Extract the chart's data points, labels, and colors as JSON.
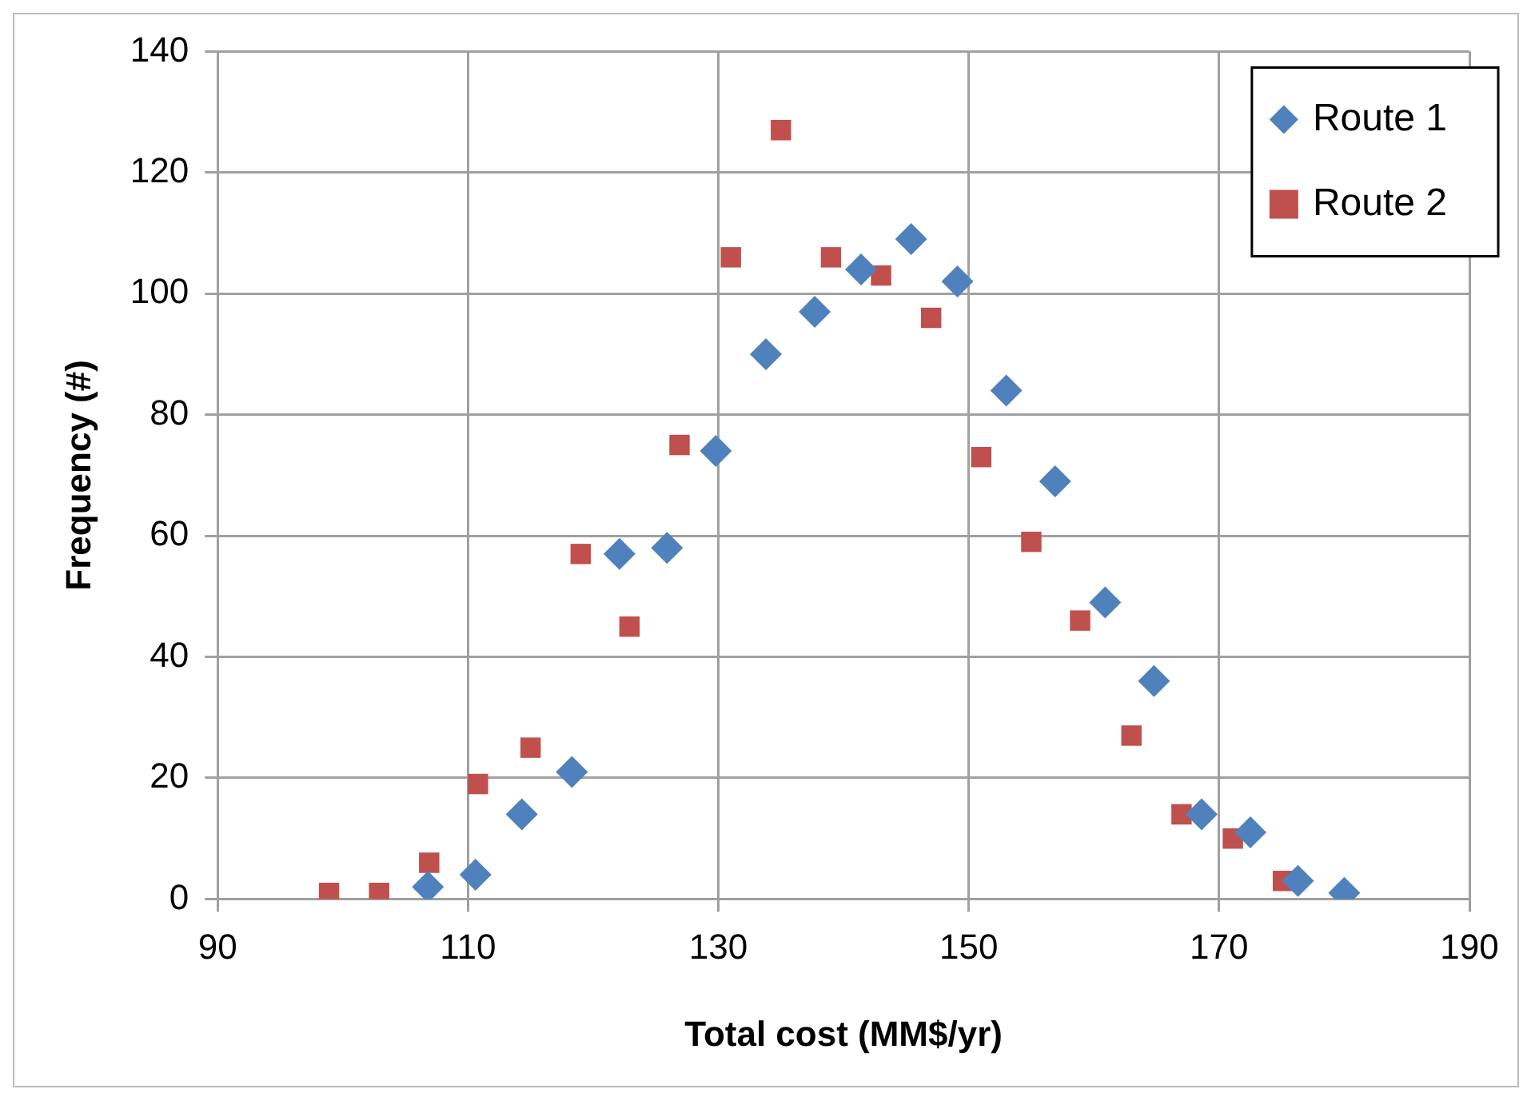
{
  "chart_data": {
    "type": "scatter",
    "xlabel": "Total cost (MM$/yr)",
    "ylabel": "Frequency (#)",
    "xlim": [
      90,
      190
    ],
    "xticks": [
      90,
      110,
      130,
      150,
      170,
      190
    ],
    "ylim": [
      0,
      140
    ],
    "yticks": [
      0,
      20,
      40,
      60,
      80,
      100,
      120,
      140
    ],
    "grid": true,
    "legend": "top right",
    "series": [
      {
        "name": "Route 1",
        "color": "#4f81bd",
        "marker": "diamond",
        "x": [
          106.8,
          110.6,
          114.3,
          118.3,
          122.1,
          125.9,
          129.8,
          133.8,
          137.7,
          141.4,
          145.4,
          149.1,
          153,
          156.9,
          160.9,
          164.8,
          168.6,
          172.5,
          176.3,
          180
        ],
        "values": [
          2,
          4,
          14,
          21,
          57,
          58,
          74,
          90,
          97,
          104,
          109,
          102,
          84,
          69,
          49,
          36,
          14,
          11,
          3,
          1
        ]
      },
      {
        "name": "Route 2",
        "color": "#c0504d",
        "marker": "square",
        "x": [
          98.9,
          102.9,
          106.9,
          110.8,
          115,
          119,
          122.9,
          126.9,
          131,
          135,
          139,
          143,
          147,
          151,
          155,
          158.9,
          163,
          167,
          171.1,
          175.1
        ],
        "values": [
          1,
          1,
          6,
          19,
          25,
          57,
          45,
          75,
          106,
          127,
          106,
          103,
          96,
          73,
          59,
          46,
          27,
          14,
          10,
          3
        ]
      }
    ]
  }
}
